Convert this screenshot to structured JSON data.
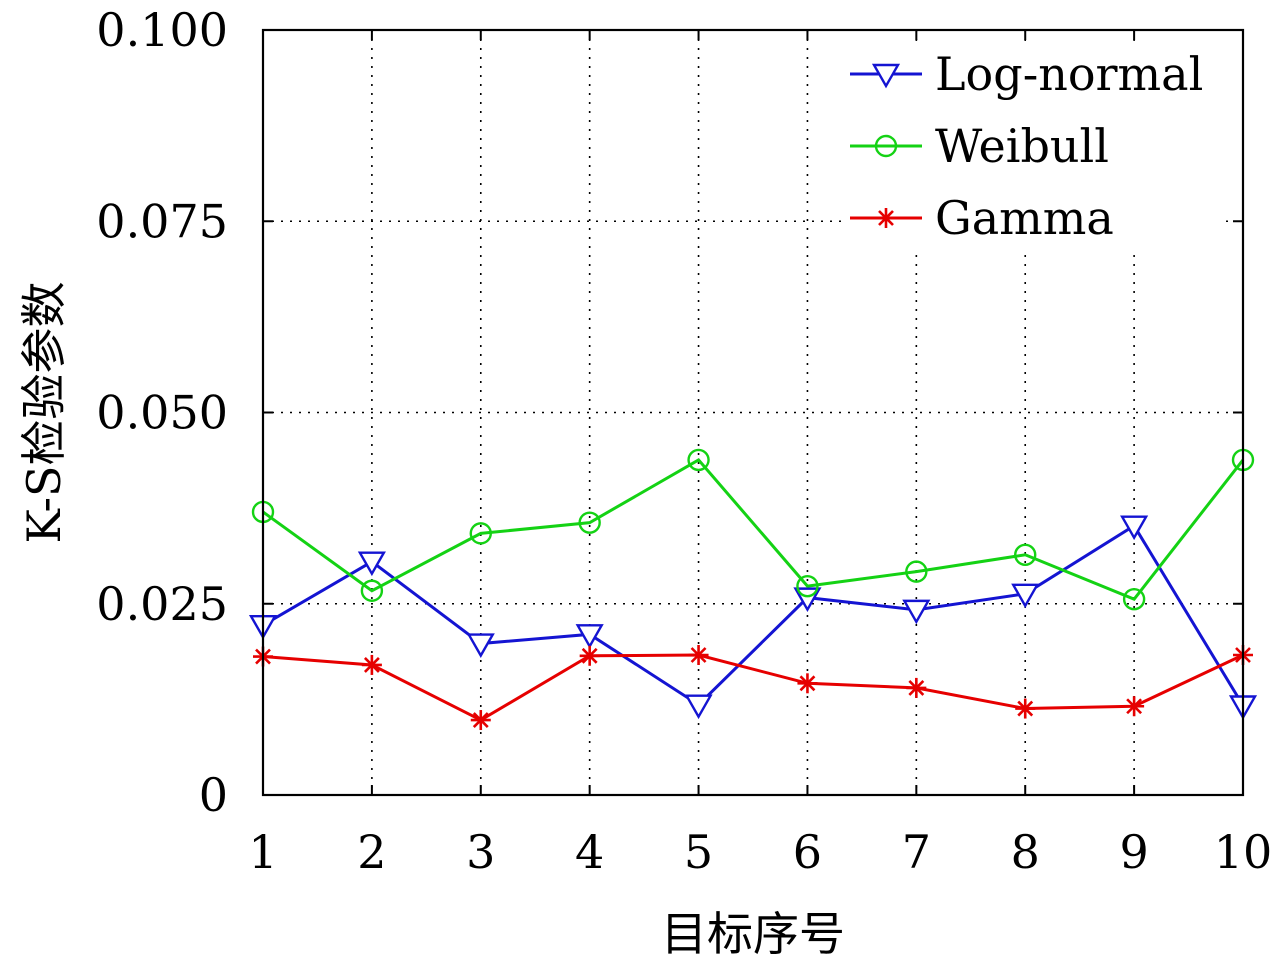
{
  "chart_data": {
    "type": "line",
    "title": "",
    "xlabel": "目标序号",
    "ylabel": "K-S检验参数",
    "x": [
      1,
      2,
      3,
      4,
      5,
      6,
      7,
      8,
      9,
      10
    ],
    "xlim": [
      1,
      10
    ],
    "ylim": [
      0,
      0.1
    ],
    "xticks": [
      "1",
      "2",
      "3",
      "4",
      "5",
      "6",
      "7",
      "8",
      "9",
      "10"
    ],
    "yticks": [
      {
        "value": 0,
        "label": "0"
      },
      {
        "value": 0.025,
        "label": "0.025"
      },
      {
        "value": 0.05,
        "label": "0.050"
      },
      {
        "value": 0.075,
        "label": "0.075"
      },
      {
        "value": 0.1,
        "label": "0.100"
      }
    ],
    "grid": true,
    "legend_position": "top-right",
    "series": [
      {
        "name": "Log-normal",
        "color": "#1414d2",
        "marker": "triangle-down",
        "values": [
          0.0222,
          0.0305,
          0.0198,
          0.021,
          0.0118,
          0.0258,
          0.0242,
          0.0263,
          0.0352,
          0.0117
        ]
      },
      {
        "name": "Weibull",
        "color": "#14d214",
        "marker": "circle",
        "values": [
          0.037,
          0.0267,
          0.0342,
          0.0356,
          0.0438,
          0.0273,
          0.0292,
          0.0314,
          0.0256,
          0.0438
        ]
      },
      {
        "name": "Gamma",
        "color": "#e60000",
        "marker": "asterisk",
        "values": [
          0.0181,
          0.017,
          0.0098,
          0.0182,
          0.0183,
          0.0146,
          0.014,
          0.0113,
          0.0116,
          0.0183
        ]
      }
    ]
  }
}
